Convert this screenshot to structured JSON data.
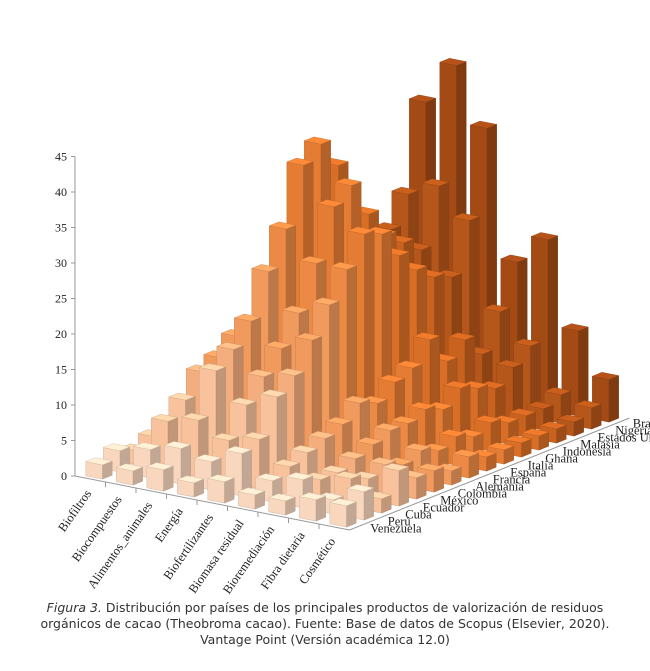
{
  "chart_data": {
    "type": "bar3d",
    "title": "",
    "zlim": [
      0,
      45
    ],
    "z_ticks": [
      "0",
      "5",
      "10",
      "15",
      "20",
      "25",
      "30",
      "35",
      "40",
      "45"
    ],
    "categories": [
      "Biofiltros",
      "Biocompuestos",
      "Alimentos_animales",
      "Energía",
      "Biofertilizantes",
      "Biomasa residual",
      "Bioremediación",
      "Fibra dietaria",
      "Cosmético"
    ],
    "countries": [
      "Venezuela",
      "Perú",
      "Cuba",
      "Ecuador",
      "México",
      "Colombia",
      "Alemania",
      "Francia",
      "España",
      "Italia",
      "Ghana",
      "Indonesia",
      "Malasia",
      "Estados Unidos",
      "Nigeria",
      "Brasil"
    ],
    "colors": [
      "#f9d7be",
      "#f7c29c",
      "#f4ad7c",
      "#f19a5d",
      "#ec8a45",
      "#e57c33",
      "#d96f27",
      "#c9621f",
      "#b5561a",
      "#a34a15"
    ],
    "series": [
      {
        "name": "Venezuela",
        "values": [
          2,
          2,
          3,
          2,
          3,
          2,
          2,
          3,
          3
        ]
      },
      {
        "name": "Perú",
        "values": [
          3,
          4,
          5,
          4,
          6,
          3,
          4,
          2,
          4
        ]
      },
      {
        "name": "Cuba",
        "values": [
          2,
          7,
          8,
          6,
          7,
          4,
          3,
          4,
          2
        ]
      },
      {
        "name": "Ecuador",
        "values": [
          3,
          9,
          14,
          10,
          12,
          5,
          3,
          3,
          5
        ]
      },
      {
        "name": "México",
        "values": [
          2,
          12,
          16,
          13,
          14,
          6,
          4,
          4,
          3
        ]
      },
      {
        "name": "Colombia",
        "values": [
          2,
          13,
          19,
          16,
          18,
          7,
          5,
          3,
          3
        ]
      },
      {
        "name": "Alemania",
        "values": [
          3,
          15,
          25,
          20,
          22,
          9,
          6,
          4,
          2
        ]
      },
      {
        "name": "Francia",
        "values": [
          2,
          14,
          30,
          26,
          26,
          8,
          6,
          3,
          3
        ]
      },
      {
        "name": "España",
        "values": [
          3,
          16,
          38,
          33,
          30,
          10,
          7,
          4,
          2
        ]
      },
      {
        "name": "Italia",
        "values": [
          2,
          14,
          40,
          35,
          29,
          11,
          6,
          3,
          2
        ]
      },
      {
        "name": "Ghana",
        "values": [
          3,
          12,
          36,
          30,
          25,
          14,
          8,
          4,
          2
        ]
      },
      {
        "name": "Indonesia",
        "values": [
          2,
          10,
          28,
          26,
          22,
          10,
          7,
          3,
          2
        ]
      },
      {
        "name": "Malasia",
        "values": [
          2,
          9,
          22,
          24,
          20,
          12,
          6,
          3,
          2
        ]
      },
      {
        "name": "Estados Unidos",
        "values": [
          3,
          10,
          24,
          22,
          19,
          9,
          8,
          3,
          2
        ]
      },
      {
        "name": "Nigeria",
        "values": [
          2,
          12,
          28,
          30,
          26,
          14,
          10,
          4,
          3
        ]
      },
      {
        "name": "Brasil",
        "values": [
          3,
          14,
          40,
          46,
          38,
          20,
          24,
          12,
          6
        ]
      }
    ]
  },
  "caption": {
    "figure_label": "Figura 3.",
    "text": " Distribución por países de los principales productos de valorización de residuos orgánicos de cacao (Theobroma cacao). Fuente: Base de datos de Scopus (Elsevier, 2020). Vantage Point (Versión académica 12.0)"
  }
}
